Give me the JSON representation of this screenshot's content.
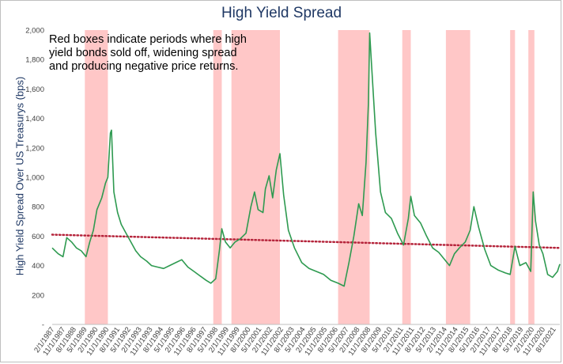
{
  "chart_data": {
    "type": "line",
    "title": "High Yield Spread",
    "ylabel": "High Yield Spread Over US Treasurys (bps)",
    "xlabel": "",
    "annotation": "Red boxes indicate periods where high yield bonds sold off, widening spread and producing negative price returns.",
    "ylim": [
      0,
      2000
    ],
    "y_ticks": [
      "-",
      "200",
      "400",
      "600",
      "800",
      "1,000",
      "1,200",
      "1,400",
      "1,600",
      "1,800",
      "2,000"
    ],
    "x_range": [
      "1987-02-01",
      "2021-12-31"
    ],
    "x_ticks": [
      {
        "label": "2/1/1987",
        "date": "1987-02-01"
      },
      {
        "label": "11/1/1987",
        "date": "1987-11-01"
      },
      {
        "label": "8/1/1988",
        "date": "1988-08-01"
      },
      {
        "label": "5/1/1989",
        "date": "1989-05-01"
      },
      {
        "label": "2/1/1990",
        "date": "1990-02-01"
      },
      {
        "label": "11/1/1990",
        "date": "1990-11-01"
      },
      {
        "label": "8/1/1991",
        "date": "1991-08-01"
      },
      {
        "label": "5/1/1992",
        "date": "1992-05-01"
      },
      {
        "label": "2/1/1993",
        "date": "1993-02-01"
      },
      {
        "label": "11/1/1993",
        "date": "1993-11-01"
      },
      {
        "label": "8/1/1994",
        "date": "1994-08-01"
      },
      {
        "label": "5/1/1995",
        "date": "1995-05-01"
      },
      {
        "label": "2/1/1996",
        "date": "1996-02-01"
      },
      {
        "label": "11/1/1996",
        "date": "1996-11-01"
      },
      {
        "label": "8/1/1997",
        "date": "1997-08-01"
      },
      {
        "label": "5/1/1998",
        "date": "1998-05-01"
      },
      {
        "label": "2/1/1999",
        "date": "1999-02-01"
      },
      {
        "label": "11/1/1999",
        "date": "1999-11-01"
      },
      {
        "label": "8/1/2000",
        "date": "2000-08-01"
      },
      {
        "label": "5/1/2001",
        "date": "2001-05-01"
      },
      {
        "label": "2/1/2002",
        "date": "2002-02-01"
      },
      {
        "label": "11/1/2002",
        "date": "2002-11-01"
      },
      {
        "label": "8/1/2003",
        "date": "2003-08-01"
      },
      {
        "label": "5/1/2004",
        "date": "2004-05-01"
      },
      {
        "label": "2/1/2005",
        "date": "2005-02-01"
      },
      {
        "label": "11/1/2005",
        "date": "2005-11-01"
      },
      {
        "label": "8/1/2006",
        "date": "2006-08-01"
      },
      {
        "label": "5/1/2007",
        "date": "2007-05-01"
      },
      {
        "label": "2/1/2008",
        "date": "2008-02-01"
      },
      {
        "label": "11/1/2008",
        "date": "2008-11-01"
      },
      {
        "label": "8/1/2009",
        "date": "2009-08-01"
      },
      {
        "label": "5/1/2010",
        "date": "2010-05-01"
      },
      {
        "label": "2/1/2011",
        "date": "2011-02-01"
      },
      {
        "label": "11/1/2011",
        "date": "2011-11-01"
      },
      {
        "label": "8/1/2012",
        "date": "2012-08-01"
      },
      {
        "label": "5/1/2013",
        "date": "2013-05-01"
      },
      {
        "label": "2/1/2014",
        "date": "2014-02-01"
      },
      {
        "label": "11/1/2014",
        "date": "2014-11-01"
      },
      {
        "label": "8/1/2015",
        "date": "2015-08-01"
      },
      {
        "label": "5/1/2016",
        "date": "2016-05-01"
      },
      {
        "label": "2/1/2017",
        "date": "2017-02-01"
      },
      {
        "label": "11/1/2017",
        "date": "2017-11-01"
      },
      {
        "label": "8/1/2018",
        "date": "2018-08-01"
      },
      {
        "label": "5/1/2019",
        "date": "2019-05-01"
      },
      {
        "label": "2/1/2020",
        "date": "2020-02-01"
      },
      {
        "label": "11/1/2020",
        "date": "2020-11-01"
      },
      {
        "label": "8/1/2021",
        "date": "2021-08-01"
      }
    ],
    "selloff_periods": [
      [
        "1989-05-01",
        "1990-12-01"
      ],
      [
        "1998-03-01",
        "1998-10-01"
      ],
      [
        "1999-06-01",
        "2002-10-01"
      ],
      [
        "2006-10-01",
        "2008-12-01"
      ],
      [
        "2011-03-01",
        "2011-10-01"
      ],
      [
        "2014-03-01",
        "2015-11-01"
      ],
      [
        "2018-08-01",
        "2018-12-01"
      ],
      [
        "2019-11-01",
        "2020-04-01"
      ]
    ],
    "selloff_color": "#ffc7c7",
    "series": [
      {
        "name": "",
        "color": "#2e9a50",
        "points": [
          [
            "1987-02-01",
            520
          ],
          [
            "1987-07-01",
            480
          ],
          [
            "1987-11-01",
            460
          ],
          [
            "1988-02-01",
            590
          ],
          [
            "1988-06-01",
            560
          ],
          [
            "1988-10-01",
            520
          ],
          [
            "1989-02-01",
            500
          ],
          [
            "1989-06-01",
            460
          ],
          [
            "1989-09-01",
            560
          ],
          [
            "1989-12-01",
            640
          ],
          [
            "1990-03-01",
            780
          ],
          [
            "1990-07-01",
            860
          ],
          [
            "1990-10-01",
            960
          ],
          [
            "1990-12-01",
            1000
          ],
          [
            "1991-02-01",
            1300
          ],
          [
            "1991-03-01",
            1320
          ],
          [
            "1991-05-01",
            900
          ],
          [
            "1991-08-01",
            760
          ],
          [
            "1991-11-01",
            680
          ],
          [
            "1992-03-01",
            620
          ],
          [
            "1992-07-01",
            560
          ],
          [
            "1992-11-01",
            500
          ],
          [
            "1993-03-01",
            460
          ],
          [
            "1993-08-01",
            430
          ],
          [
            "1993-12-01",
            400
          ],
          [
            "1994-05-01",
            390
          ],
          [
            "1994-10-01",
            380
          ],
          [
            "1995-03-01",
            400
          ],
          [
            "1995-08-01",
            420
          ],
          [
            "1996-01-01",
            440
          ],
          [
            "1996-06-01",
            390
          ],
          [
            "1996-11-01",
            360
          ],
          [
            "1997-04-01",
            330
          ],
          [
            "1997-09-01",
            300
          ],
          [
            "1998-01-01",
            280
          ],
          [
            "1998-05-01",
            310
          ],
          [
            "1998-08-01",
            500
          ],
          [
            "1998-10-01",
            650
          ],
          [
            "1999-01-01",
            560
          ],
          [
            "1999-05-01",
            520
          ],
          [
            "1999-09-01",
            560
          ],
          [
            "2000-01-01",
            580
          ],
          [
            "2000-06-01",
            620
          ],
          [
            "2000-10-01",
            800
          ],
          [
            "2001-01-01",
            900
          ],
          [
            "2001-04-01",
            780
          ],
          [
            "2001-08-01",
            760
          ],
          [
            "2001-10-01",
            920
          ],
          [
            "2002-01-01",
            1010
          ],
          [
            "2002-04-01",
            860
          ],
          [
            "2002-07-01",
            1050
          ],
          [
            "2002-10-01",
            1160
          ],
          [
            "2003-01-01",
            880
          ],
          [
            "2003-05-01",
            640
          ],
          [
            "2003-10-01",
            520
          ],
          [
            "2004-04-01",
            420
          ],
          [
            "2004-10-01",
            380
          ],
          [
            "2005-04-01",
            360
          ],
          [
            "2005-10-01",
            340
          ],
          [
            "2006-04-01",
            300
          ],
          [
            "2006-10-01",
            280
          ],
          [
            "2007-03-01",
            260
          ],
          [
            "2007-07-01",
            420
          ],
          [
            "2007-11-01",
            600
          ],
          [
            "2008-03-01",
            820
          ],
          [
            "2008-06-01",
            740
          ],
          [
            "2008-09-01",
            1100
          ],
          [
            "2008-11-01",
            1500
          ],
          [
            "2008-12-01",
            1980
          ],
          [
            "2009-02-01",
            1700
          ],
          [
            "2009-05-01",
            1300
          ],
          [
            "2009-09-01",
            900
          ],
          [
            "2010-01-01",
            760
          ],
          [
            "2010-06-01",
            720
          ],
          [
            "2010-11-01",
            620
          ],
          [
            "2011-04-01",
            540
          ],
          [
            "2011-08-01",
            720
          ],
          [
            "2011-10-01",
            870
          ],
          [
            "2012-01-01",
            740
          ],
          [
            "2012-06-01",
            690
          ],
          [
            "2012-11-01",
            600
          ],
          [
            "2013-04-01",
            520
          ],
          [
            "2013-09-01",
            490
          ],
          [
            "2014-02-01",
            440
          ],
          [
            "2014-06-01",
            400
          ],
          [
            "2014-10-01",
            480
          ],
          [
            "2015-02-01",
            520
          ],
          [
            "2015-07-01",
            560
          ],
          [
            "2015-11-01",
            640
          ],
          [
            "2016-02-01",
            800
          ],
          [
            "2016-06-01",
            660
          ],
          [
            "2016-11-01",
            510
          ],
          [
            "2017-04-01",
            400
          ],
          [
            "2017-10-01",
            370
          ],
          [
            "2018-04-01",
            350
          ],
          [
            "2018-08-01",
            340
          ],
          [
            "2018-12-01",
            530
          ],
          [
            "2019-04-01",
            400
          ],
          [
            "2019-09-01",
            420
          ],
          [
            "2020-01-01",
            360
          ],
          [
            "2020-03-01",
            900
          ],
          [
            "2020-05-01",
            700
          ],
          [
            "2020-08-01",
            540
          ],
          [
            "2020-11-01",
            480
          ],
          [
            "2021-03-01",
            340
          ],
          [
            "2021-07-01",
            320
          ],
          [
            "2021-11-01",
            360
          ],
          [
            "2021-12-31",
            410
          ]
        ]
      }
    ],
    "trendline": {
      "style": "dotted",
      "color": "#b5243b",
      "points": [
        [
          "1987-02-01",
          610
        ],
        [
          "2021-12-31",
          520
        ]
      ]
    },
    "grid": false
  }
}
